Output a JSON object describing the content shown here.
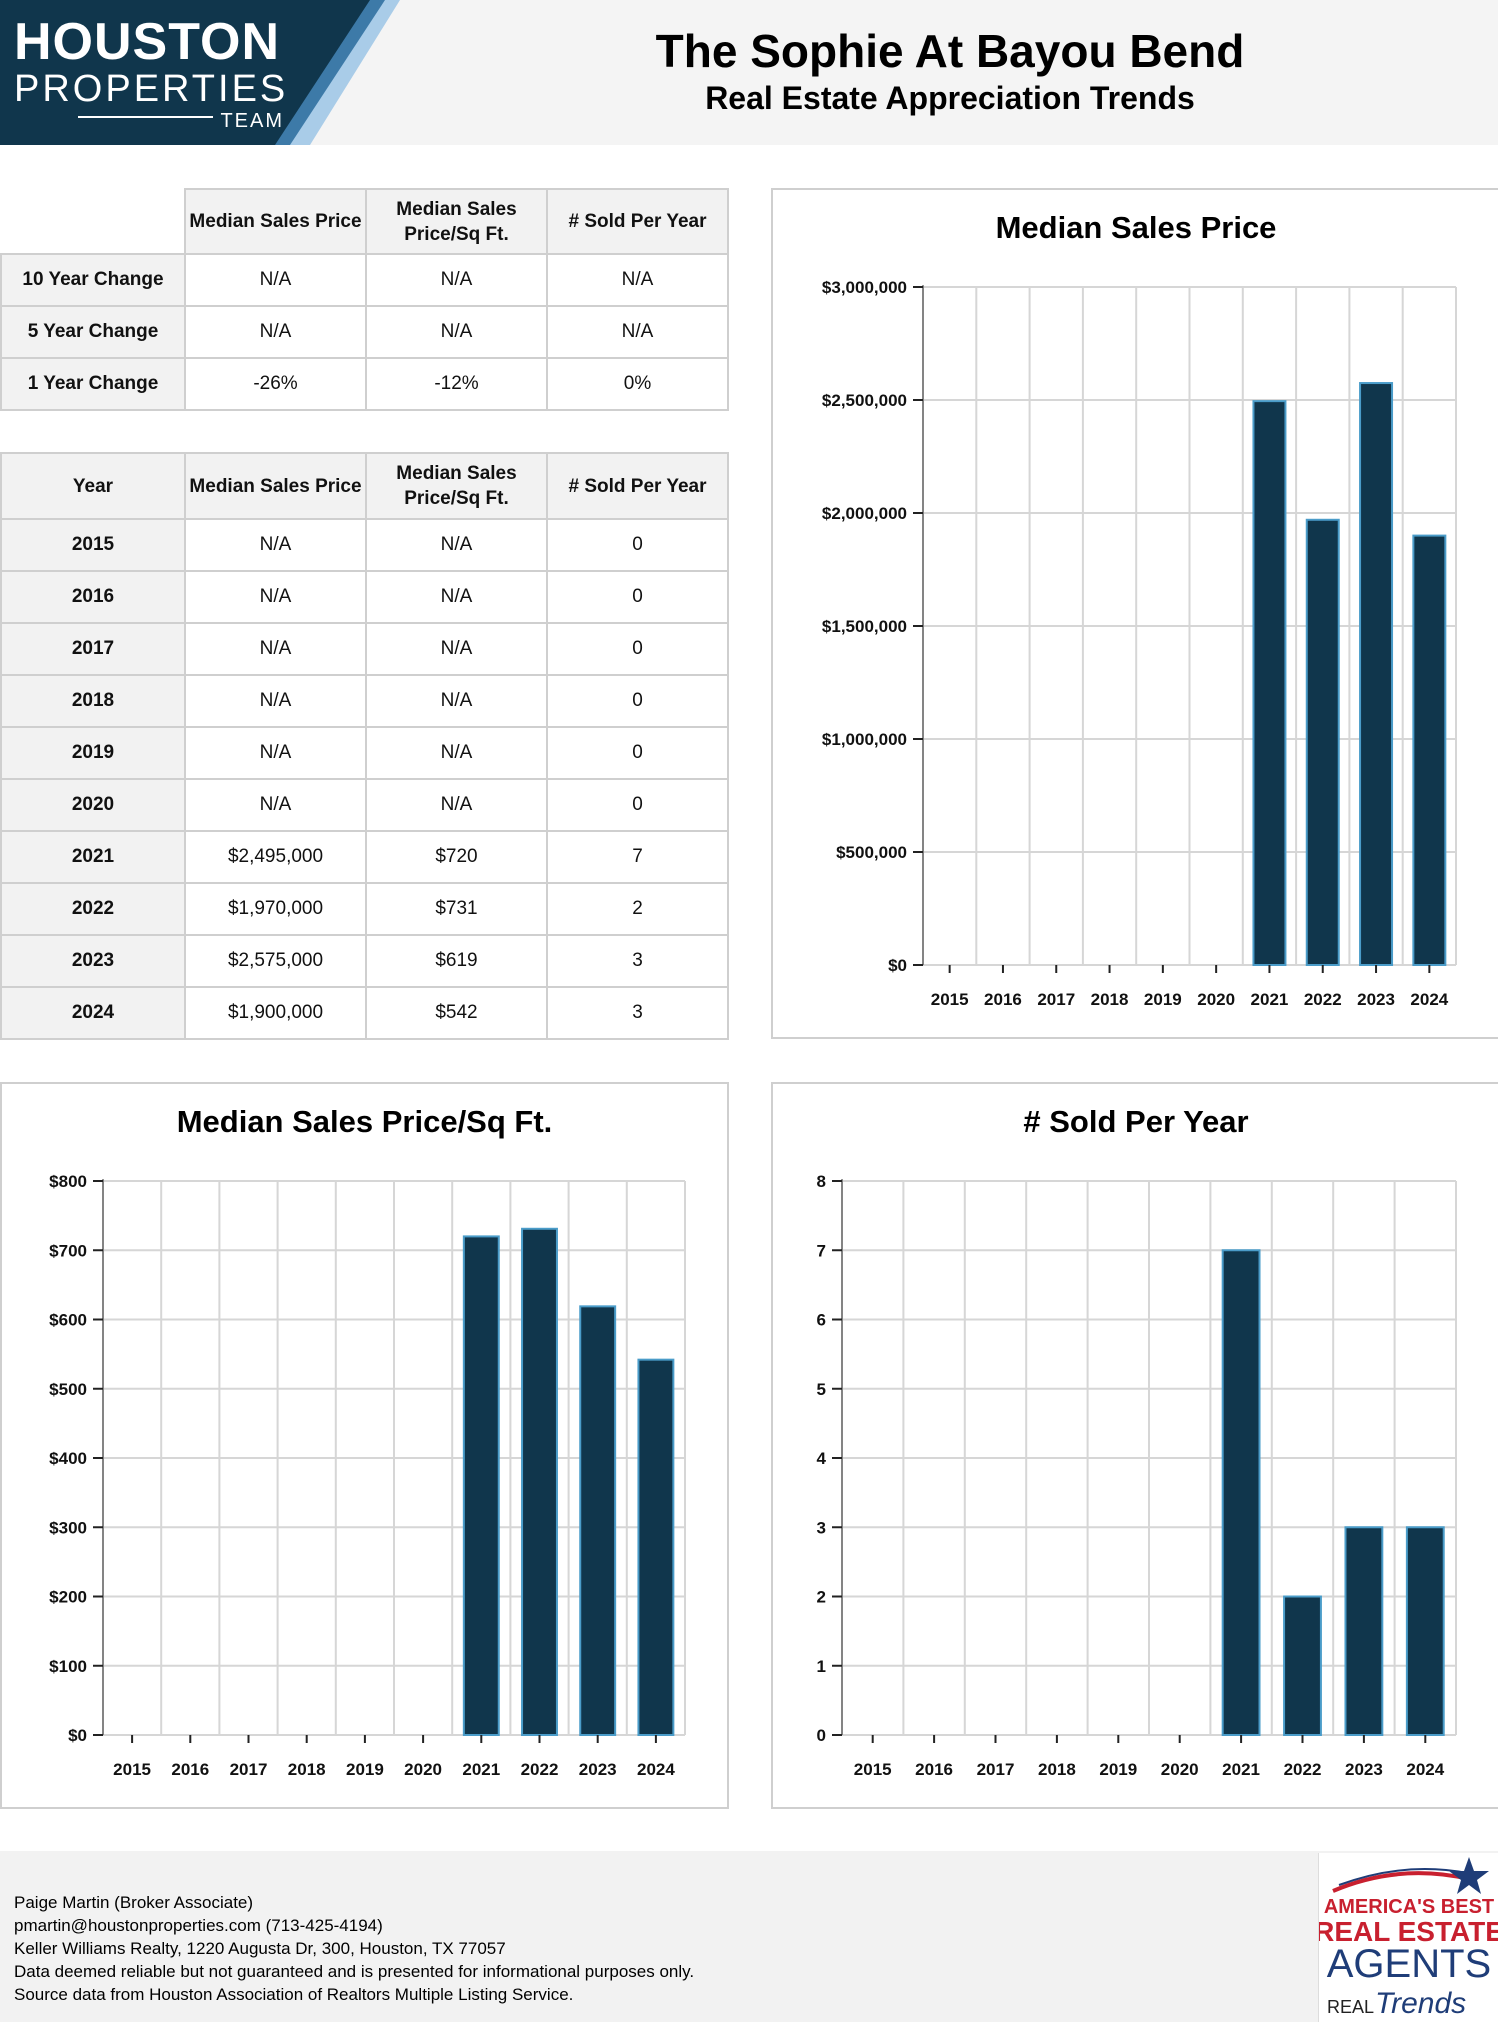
{
  "header": {
    "logo_line1": "HOUSTON",
    "logo_line2": "PROPERTIES",
    "logo_line3": "TEAM",
    "title": "The Sophie At Bayou Bend",
    "subtitle": "Real Estate Appreciation Trends"
  },
  "change_table": {
    "headers": [
      "Median Sales Price",
      "Median Sales Price/Sq Ft.",
      "# Sold Per Year"
    ],
    "rows": [
      {
        "label": "10 Year Change",
        "values": [
          "N/A",
          "N/A",
          "N/A"
        ]
      },
      {
        "label": "5 Year Change",
        "values": [
          "N/A",
          "N/A",
          "N/A"
        ]
      },
      {
        "label": "1 Year Change",
        "values": [
          "-26%",
          "-12%",
          "0%"
        ]
      }
    ]
  },
  "year_table": {
    "headers": [
      "Year",
      "Median Sales Price",
      "Median Sales Price/Sq Ft.",
      "# Sold Per Year"
    ],
    "rows": [
      {
        "year": "2015",
        "price": "N/A",
        "sqft": "N/A",
        "sold": "0"
      },
      {
        "year": "2016",
        "price": "N/A",
        "sqft": "N/A",
        "sold": "0"
      },
      {
        "year": "2017",
        "price": "N/A",
        "sqft": "N/A",
        "sold": "0"
      },
      {
        "year": "2018",
        "price": "N/A",
        "sqft": "N/A",
        "sold": "0"
      },
      {
        "year": "2019",
        "price": "N/A",
        "sqft": "N/A",
        "sold": "0"
      },
      {
        "year": "2020",
        "price": "N/A",
        "sqft": "N/A",
        "sold": "0"
      },
      {
        "year": "2021",
        "price": "$2,495,000",
        "sqft": "$720",
        "sold": "7"
      },
      {
        "year": "2022",
        "price": "$1,970,000",
        "sqft": "$731",
        "sold": "2"
      },
      {
        "year": "2023",
        "price": "$2,575,000",
        "sqft": "$619",
        "sold": "3"
      },
      {
        "year": "2024",
        "price": "$1,900,000",
        "sqft": "$542",
        "sold": "3"
      }
    ]
  },
  "chart_data": [
    {
      "type": "bar",
      "title": "Median Sales Price",
      "categories": [
        "2015",
        "2016",
        "2017",
        "2018",
        "2019",
        "2020",
        "2021",
        "2022",
        "2023",
        "2024"
      ],
      "values": [
        0,
        0,
        0,
        0,
        0,
        0,
        2495000,
        1970000,
        2575000,
        1900000
      ],
      "ylim": [
        0,
        3000000
      ],
      "yticks": [
        0,
        500000,
        1000000,
        1500000,
        2000000,
        2500000,
        3000000
      ],
      "ytick_labels": [
        "$0",
        "$500,000",
        "$1,000,000",
        "$1,500,000",
        "$2,000,000",
        "$2,500,000",
        "$3,000,000"
      ],
      "grid": true,
      "bar_color": "#10364c"
    },
    {
      "type": "bar",
      "title": "Median Sales Price/Sq Ft.",
      "categories": [
        "2015",
        "2016",
        "2017",
        "2018",
        "2019",
        "2020",
        "2021",
        "2022",
        "2023",
        "2024"
      ],
      "values": [
        0,
        0,
        0,
        0,
        0,
        0,
        720,
        731,
        619,
        542
      ],
      "ylim": [
        0,
        800
      ],
      "yticks": [
        0,
        100,
        200,
        300,
        400,
        500,
        600,
        700,
        800
      ],
      "ytick_labels": [
        "$0",
        "$100",
        "$200",
        "$300",
        "$400",
        "$500",
        "$600",
        "$700",
        "$800"
      ],
      "grid": true,
      "bar_color": "#10364c"
    },
    {
      "type": "bar",
      "title": "# Sold Per Year",
      "categories": [
        "2015",
        "2016",
        "2017",
        "2018",
        "2019",
        "2020",
        "2021",
        "2022",
        "2023",
        "2024"
      ],
      "values": [
        0,
        0,
        0,
        0,
        0,
        0,
        7,
        2,
        3,
        3
      ],
      "ylim": [
        0,
        8
      ],
      "yticks": [
        0,
        1,
        2,
        3,
        4,
        5,
        6,
        7,
        8
      ],
      "ytick_labels": [
        "0",
        "1",
        "2",
        "3",
        "4",
        "5",
        "6",
        "7",
        "8"
      ],
      "grid": true,
      "bar_color": "#10364c"
    }
  ],
  "footer": {
    "lines": [
      "Paige Martin (Broker Associate)",
      "pmartin@houstonproperties.com (713-425-4194)",
      "Keller Williams Realty, 1220 Augusta Dr, 300, Houston, TX 77057",
      "Data deemed reliable but not guaranteed and is presented for informational purposes only.",
      "Source data from Houston Association of Realtors Multiple Listing Service."
    ]
  },
  "badge": {
    "line1": "AMERICA'S BEST",
    "line2": "REAL ESTATE",
    "line3": "AGENTS",
    "line4": "REAL",
    "line5": "Trends"
  },
  "colors": {
    "navy": "#10364c",
    "accent": "#3d7aa8",
    "light_blue": "#a9cce8",
    "star": "#1f3d78"
  }
}
